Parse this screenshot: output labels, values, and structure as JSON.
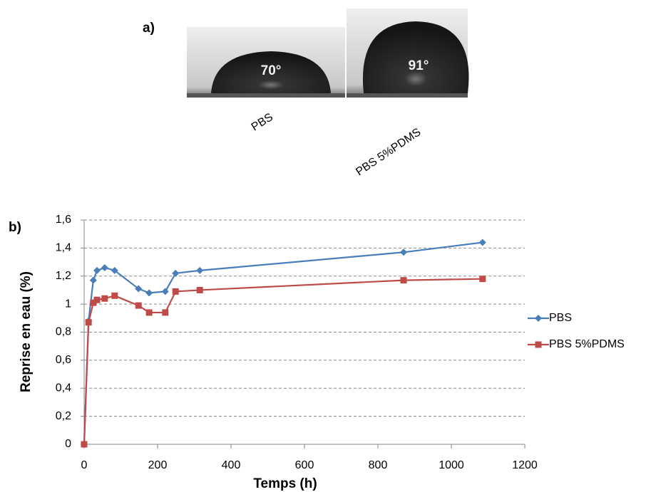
{
  "panel_a": {
    "label": "a)",
    "images": [
      {
        "angle": "70°",
        "caption": "PBS"
      },
      {
        "angle": "91°",
        "caption": "PBS 5%PDMS"
      }
    ]
  },
  "chart_data": {
    "type": "line",
    "panel_label": "b)",
    "x_label": "Temps (h)",
    "y_label": "Reprise en eau (%)",
    "series": [
      {
        "name": "PBS",
        "color": "#4a7ebb",
        "marker": "diamond",
        "x": [
          0,
          12,
          25,
          35,
          56,
          83,
          148,
          177,
          221,
          249,
          315,
          870,
          1085
        ],
        "values": [
          0,
          0.88,
          1.17,
          1.24,
          1.26,
          1.24,
          1.11,
          1.08,
          1.09,
          1.22,
          1.24,
          1.37,
          1.44
        ]
      },
      {
        "name": "PBS 5%PDMS",
        "color": "#be4b48",
        "marker": "square",
        "x": [
          0,
          12,
          25,
          35,
          56,
          83,
          148,
          177,
          221,
          249,
          315,
          870,
          1085
        ],
        "values": [
          0,
          0.87,
          1.01,
          1.03,
          1.04,
          1.06,
          0.99,
          0.94,
          0.94,
          1.09,
          1.1,
          1.17,
          1.18
        ]
      }
    ],
    "xlim": [
      0,
      1200
    ],
    "xticks": [
      0,
      200,
      400,
      600,
      800,
      1000,
      1200
    ],
    "ylim": [
      0,
      1.6
    ],
    "yticks": [
      0,
      {
        "value": 0.2,
        "label": "0,2"
      },
      {
        "value": 0.4,
        "label": "0,4"
      },
      {
        "value": 0.6,
        "label": "0,6"
      },
      {
        "value": 0.8,
        "label": "0,8"
      },
      1,
      {
        "value": 1.2,
        "label": "1,2"
      },
      {
        "value": 1.4,
        "label": "1,4"
      },
      {
        "value": 1.6,
        "label": "1,6"
      }
    ],
    "grid": true,
    "legend": "right"
  }
}
